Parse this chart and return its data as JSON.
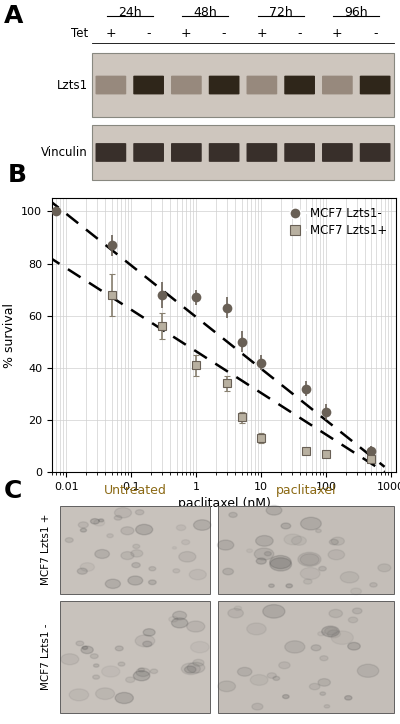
{
  "panel_A": {
    "label": "A",
    "time_points": [
      "24h",
      "48h",
      "72h",
      "96h"
    ],
    "tet_labels": [
      "+",
      "-",
      "+",
      "-",
      "+",
      "-",
      "+",
      "-"
    ],
    "row_labels": [
      "Lzts1",
      "Vinculin"
    ],
    "blot_bg": "#cec6be",
    "band_color_lzts1_plus": "#8a7a6a",
    "band_color_lzts1_minus": "#2a1e12",
    "band_color_vinculin": "#1e1810"
  },
  "panel_B": {
    "label": "B",
    "xlabel": "paclitaxel (nM)",
    "ylabel": "% survival",
    "ylim": [
      0,
      105
    ],
    "circle_color": "#696056",
    "square_color": "#b8b0a0",
    "square_edge_color": "#696056",
    "legend_circle_label": "MCF7 Lzts1-",
    "legend_square_label": "MCF7 Lzts1+",
    "circle_data_x": [
      0.007,
      0.05,
      0.3,
      1.0,
      3.0,
      5.0,
      10.0,
      50.0,
      100.0,
      500.0
    ],
    "circle_data_y": [
      100,
      87,
      68,
      67,
      63,
      50,
      42,
      32,
      23,
      8
    ],
    "circle_data_yerr": [
      0,
      4,
      5,
      3,
      4,
      4,
      3,
      3,
      3,
      2
    ],
    "square_data_x": [
      0.05,
      0.3,
      1.0,
      3.0,
      5.0,
      10.0,
      50.0,
      100.0,
      500.0
    ],
    "square_data_y": [
      68,
      56,
      41,
      34,
      21,
      13,
      8,
      7,
      5
    ],
    "square_data_yerr": [
      8,
      5,
      4,
      3,
      2,
      2,
      1,
      1,
      1
    ],
    "grid_color": "#d0d0d0"
  },
  "panel_C": {
    "label": "C",
    "col_labels": [
      "Untreated",
      "paclitaxel"
    ],
    "row_label_top": "MCF7 Lzts1 +",
    "row_label_bot": "MCF7 Lzts1 -",
    "label_color_col": "#8B6914"
  }
}
